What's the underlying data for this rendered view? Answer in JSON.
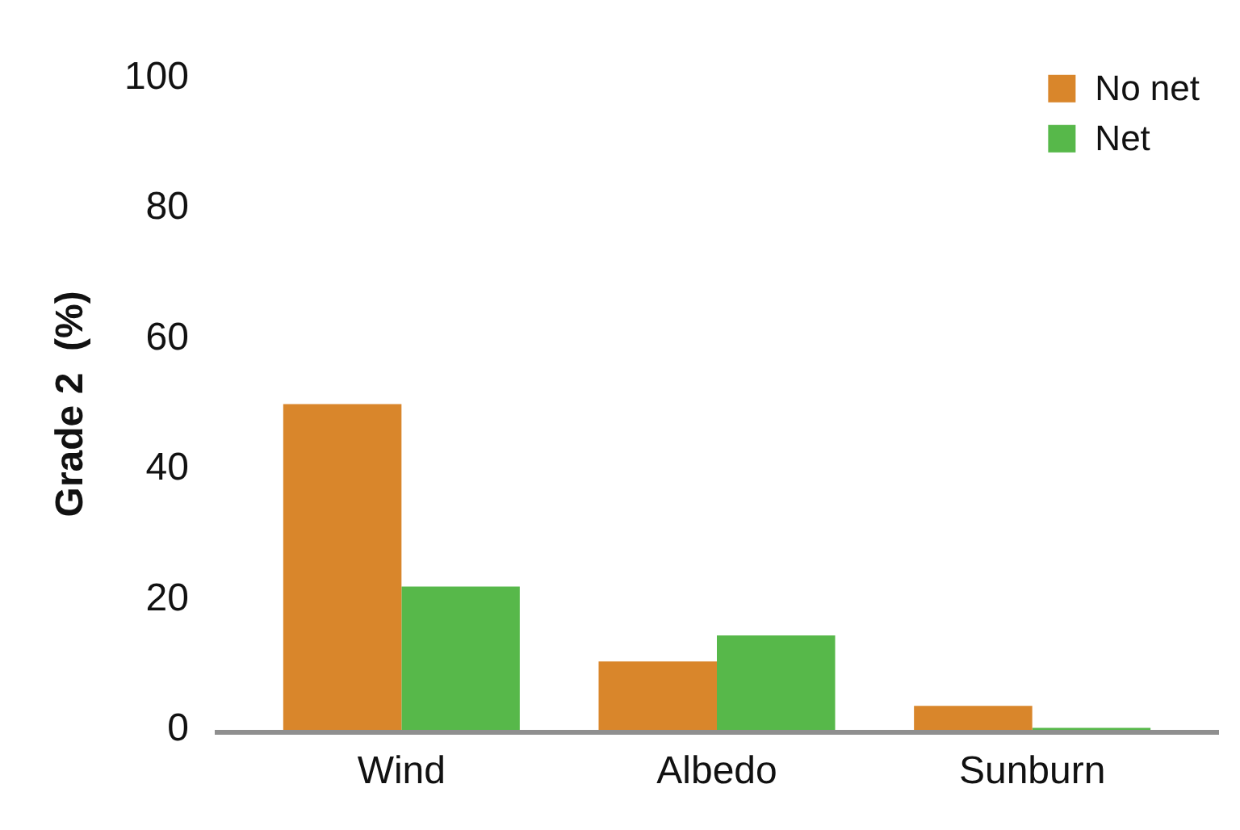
{
  "chart_data": {
    "type": "bar",
    "ylabel": "Grade 2  (%)",
    "categories": [
      "Wind",
      "Albedo",
      "Sunburn"
    ],
    "series": [
      {
        "name": "No net",
        "color": "#d9862b",
        "values": [
          50,
          10.5,
          3.7
        ]
      },
      {
        "name": "Net",
        "color": "#57b84a",
        "values": [
          22,
          14.5,
          0.3
        ]
      }
    ],
    "ylim": [
      0,
      100
    ],
    "yticks": [
      0,
      20,
      40,
      60,
      80,
      100
    ],
    "grid": false,
    "legend": "top right"
  }
}
